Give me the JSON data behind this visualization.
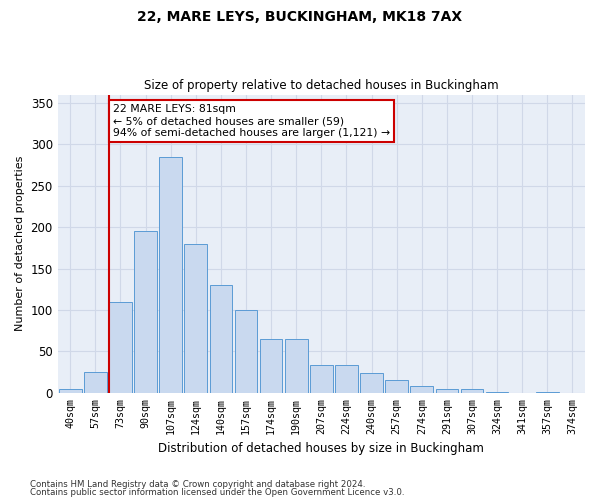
{
  "title1": "22, MARE LEYS, BUCKINGHAM, MK18 7AX",
  "title2": "Size of property relative to detached houses in Buckingham",
  "xlabel": "Distribution of detached houses by size in Buckingham",
  "ylabel": "Number of detached properties",
  "bar_labels": [
    "40sqm",
    "57sqm",
    "73sqm",
    "90sqm",
    "107sqm",
    "124sqm",
    "140sqm",
    "157sqm",
    "174sqm",
    "190sqm",
    "207sqm",
    "224sqm",
    "240sqm",
    "257sqm",
    "274sqm",
    "291sqm",
    "307sqm",
    "324sqm",
    "341sqm",
    "357sqm",
    "374sqm"
  ],
  "bar_values": [
    5,
    25,
    110,
    195,
    285,
    180,
    130,
    100,
    65,
    65,
    33,
    33,
    24,
    15,
    8,
    4,
    4,
    1,
    0,
    1,
    0
  ],
  "bar_color": "#c9d9ef",
  "bar_edge_color": "#5b9bd5",
  "red_line_index": 2,
  "annotation_text": "22 MARE LEYS: 81sqm\n← 5% of detached houses are smaller (59)\n94% of semi-detached houses are larger (1,121) →",
  "annotation_box_color": "#ffffff",
  "annotation_box_edge_color": "#cc0000",
  "ylim": [
    0,
    360
  ],
  "yticks": [
    0,
    50,
    100,
    150,
    200,
    250,
    300,
    350
  ],
  "grid_color": "#d0d8e8",
  "background_color": "#e8eef7",
  "footnote1": "Contains HM Land Registry data © Crown copyright and database right 2024.",
  "footnote2": "Contains public sector information licensed under the Open Government Licence v3.0."
}
